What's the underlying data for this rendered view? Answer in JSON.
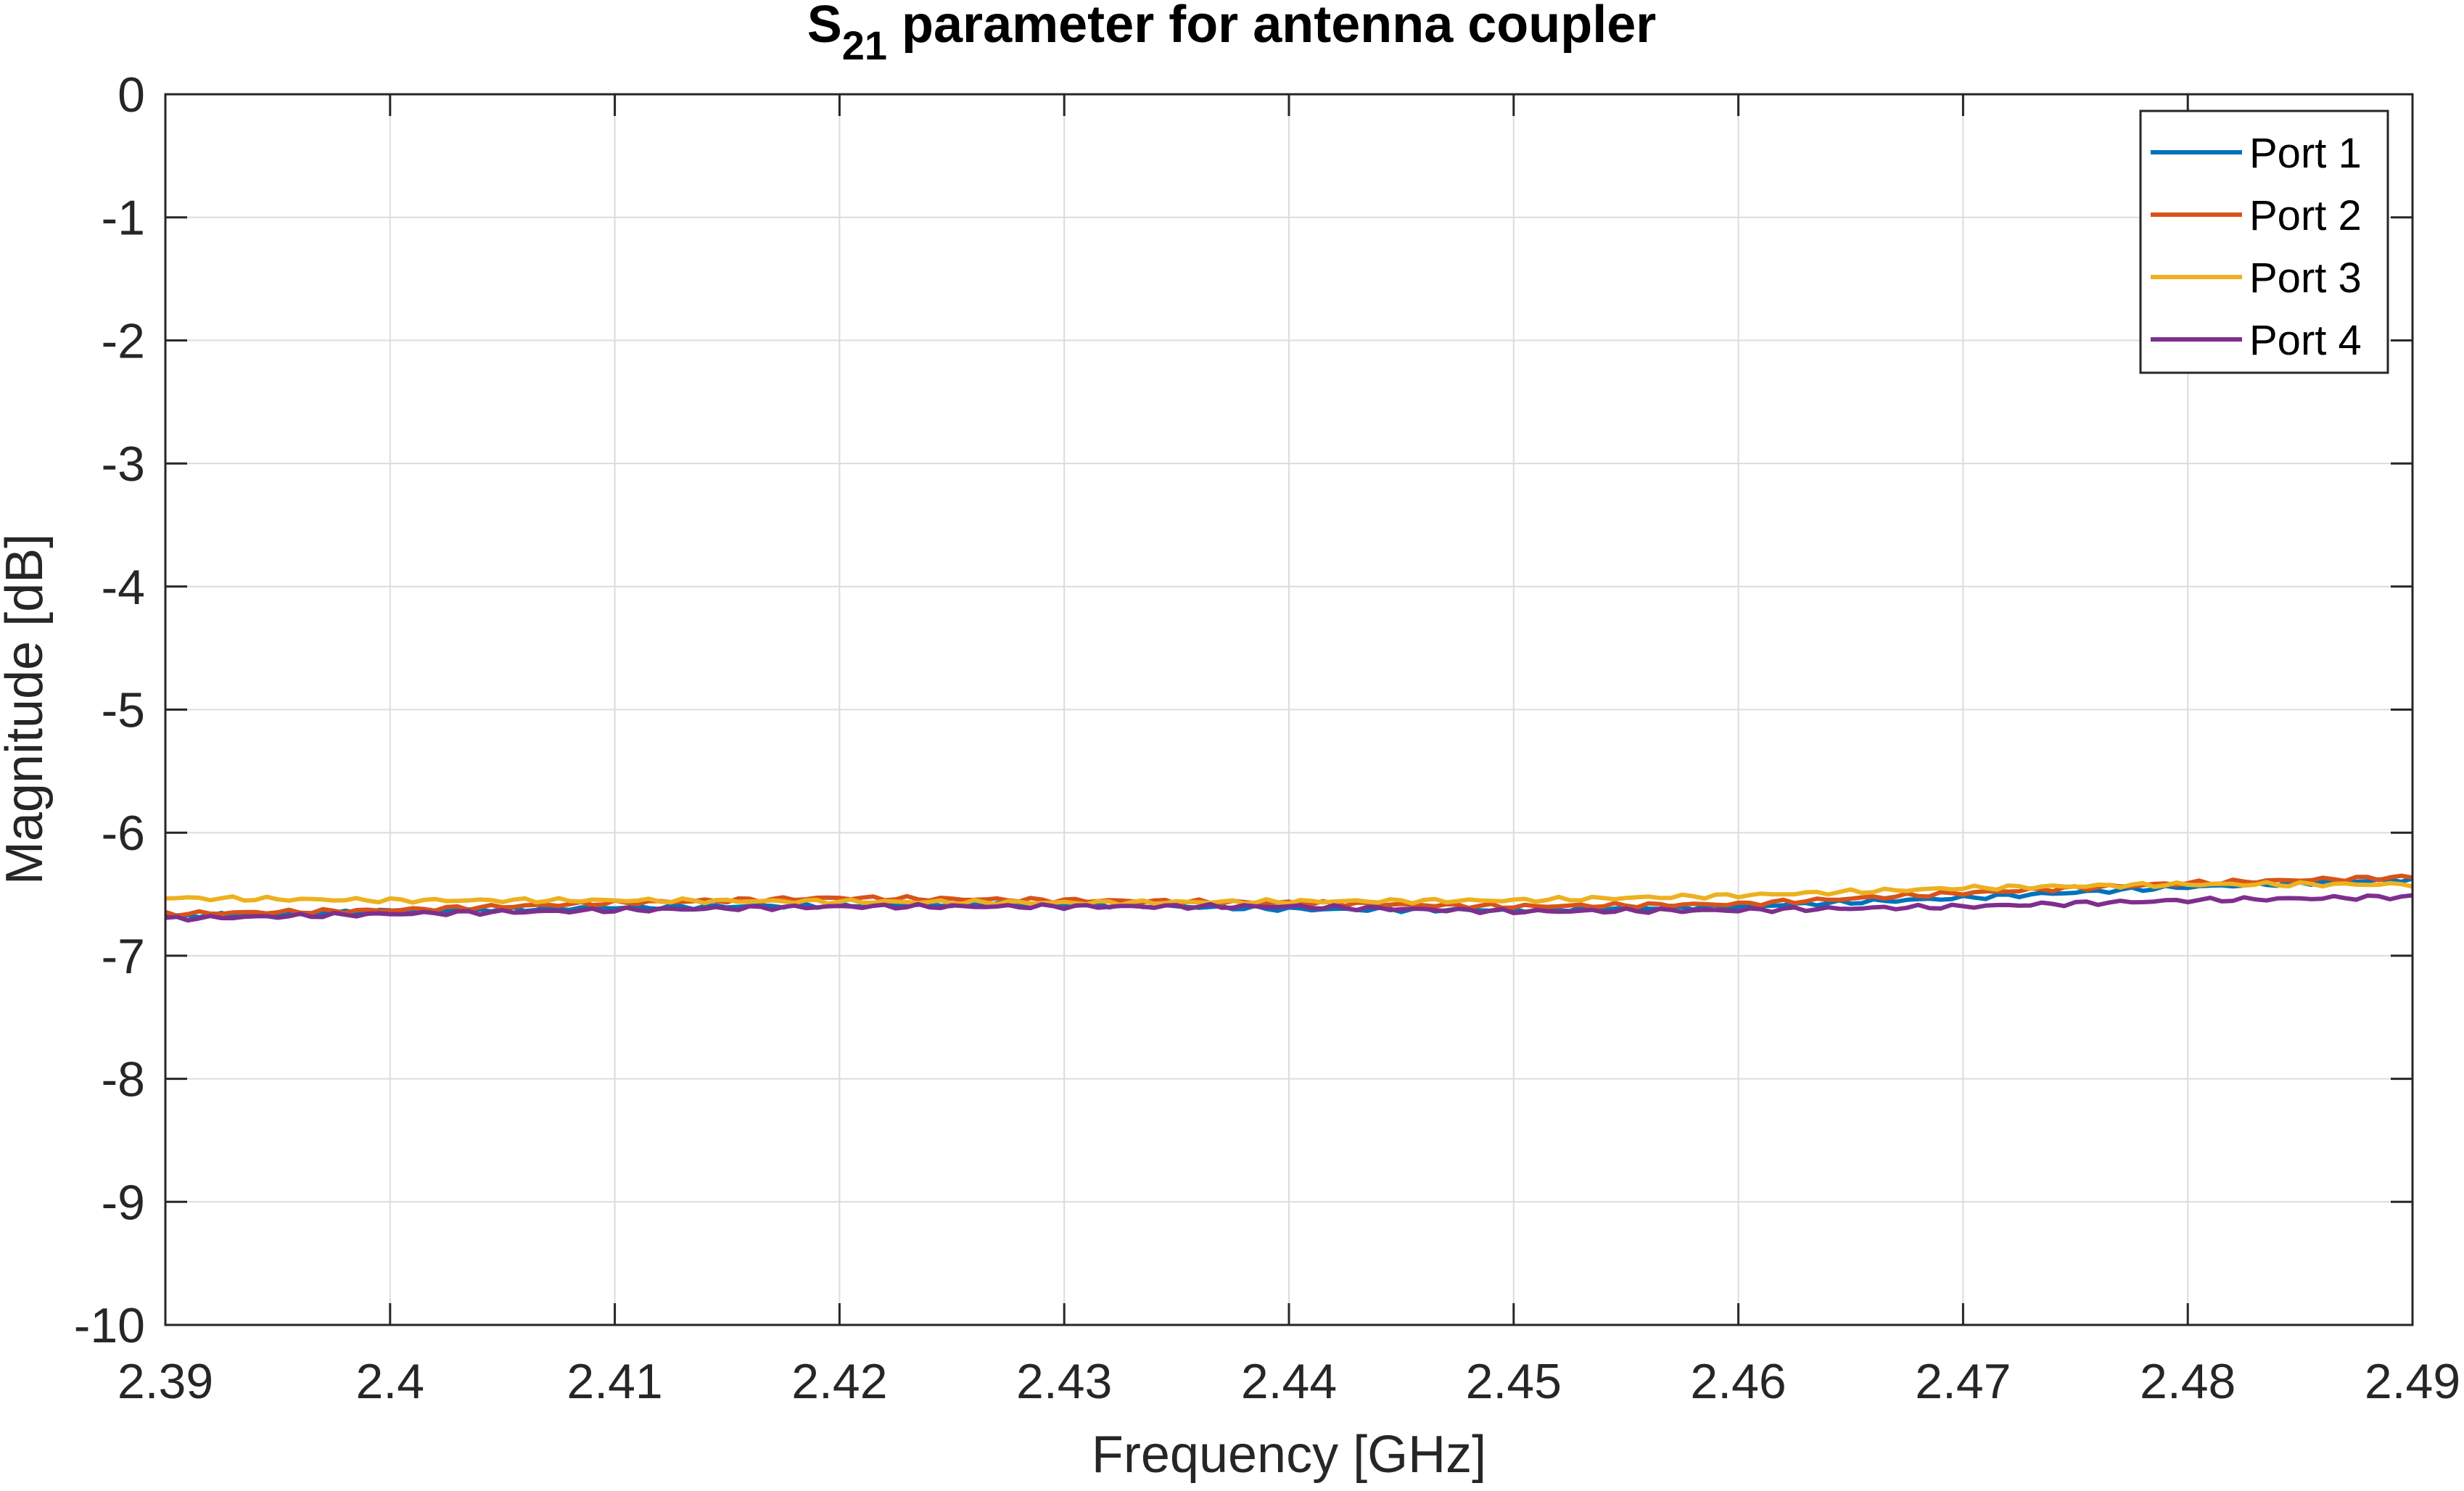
{
  "chart_data": {
    "type": "line",
    "title": "S",
    "title_sub": "21",
    "title_rest": " parameter for antenna coupler",
    "xlabel": "Frequency [GHz]",
    "ylabel": "Magnitude [dB]",
    "xlim": [
      2.39,
      2.49
    ],
    "ylim": [
      -10,
      0
    ],
    "xticks": [
      2.39,
      2.4,
      2.41,
      2.42,
      2.43,
      2.44,
      2.45,
      2.46,
      2.47,
      2.48,
      2.49
    ],
    "xtick_labels": [
      "2.39",
      "2.4",
      "2.41",
      "2.42",
      "2.43",
      "2.44",
      "2.45",
      "2.46",
      "2.47",
      "2.48",
      "2.49"
    ],
    "yticks": [
      0,
      -1,
      -2,
      -3,
      -4,
      -5,
      -6,
      -7,
      -8,
      -9,
      -10
    ],
    "ytick_labels": [
      "0",
      "-1",
      "-2",
      "-3",
      "-4",
      "-5",
      "-6",
      "-7",
      "-8",
      "-9",
      "-10"
    ],
    "grid": true,
    "legend_position": "top-right",
    "x": [
      2.39,
      2.4,
      2.41,
      2.42,
      2.43,
      2.44,
      2.45,
      2.46,
      2.47,
      2.48,
      2.49
    ],
    "series": [
      {
        "name": "Port 1",
        "color": "#0072BD",
        "values": [
          -6.68,
          -6.64,
          -6.61,
          -6.59,
          -6.58,
          -6.62,
          -6.63,
          -6.6,
          -6.53,
          -6.44,
          -6.38
        ]
      },
      {
        "name": "Port 2",
        "color": "#D95319",
        "values": [
          -6.66,
          -6.63,
          -6.57,
          -6.53,
          -6.55,
          -6.57,
          -6.6,
          -6.58,
          -6.49,
          -6.41,
          -6.36
        ]
      },
      {
        "name": "Port 3",
        "color": "#EDB120",
        "values": [
          -6.53,
          -6.55,
          -6.55,
          -6.56,
          -6.57,
          -6.56,
          -6.55,
          -6.51,
          -6.45,
          -6.42,
          -6.42
        ]
      },
      {
        "name": "Port 4",
        "color": "#7E2F8E",
        "values": [
          -6.7,
          -6.66,
          -6.63,
          -6.6,
          -6.6,
          -6.6,
          -6.64,
          -6.63,
          -6.6,
          -6.55,
          -6.52
        ]
      }
    ]
  }
}
